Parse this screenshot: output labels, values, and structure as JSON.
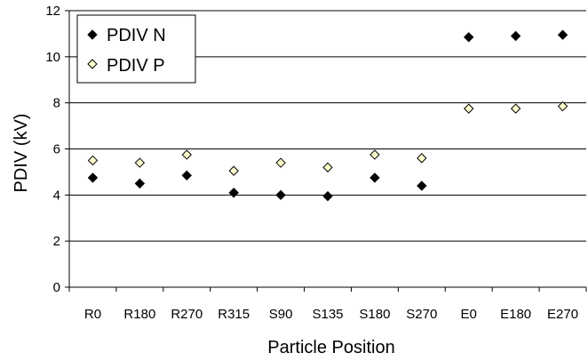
{
  "chart_data": {
    "type": "scatter",
    "categories": [
      "R0",
      "R180",
      "R270",
      "R315",
      "S90",
      "S135",
      "S180",
      "S270",
      "E0",
      "E180",
      "E270"
    ],
    "series": [
      {
        "name": "PDIV N",
        "marker": "diamond-filled",
        "color": "#000000",
        "values": [
          4.75,
          4.5,
          4.85,
          4.1,
          4.0,
          3.95,
          4.75,
          4.4,
          10.85,
          10.9,
          10.95
        ]
      },
      {
        "name": "PDIV P",
        "marker": "diamond-open",
        "color": "#ffffcc",
        "values": [
          5.5,
          5.4,
          5.75,
          5.05,
          5.4,
          5.2,
          5.75,
          5.6,
          7.75,
          7.75,
          7.85
        ]
      }
    ],
    "xlabel": "Particle Position",
    "ylabel": "PDIV (kV)",
    "ylim": [
      0,
      12
    ],
    "yticks": [
      "0",
      "2",
      "4",
      "6",
      "8",
      "10",
      "12"
    ],
    "grid": "horizontal",
    "legend_position": "top-left"
  }
}
